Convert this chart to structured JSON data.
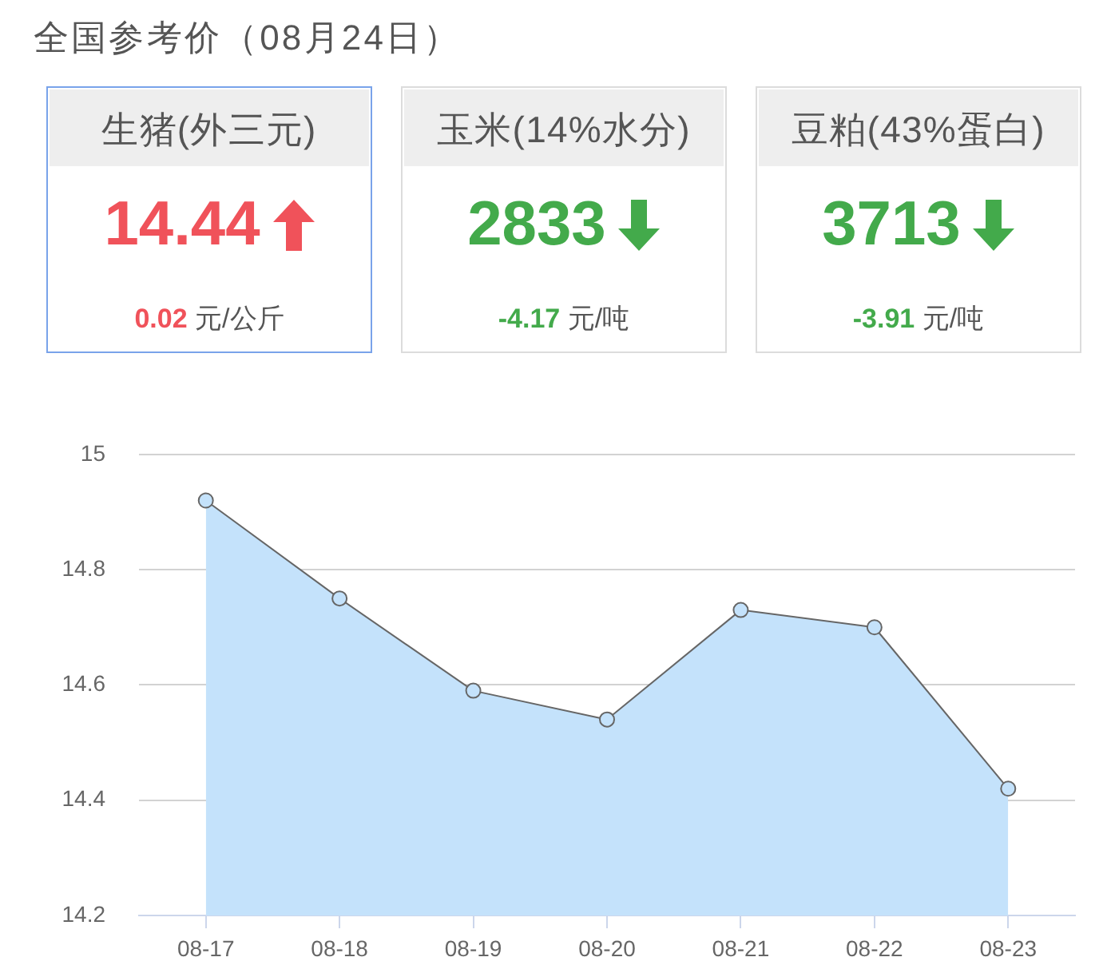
{
  "chart_data": [
    {
      "type": "other",
      "title": "全国参考价（08月24日）",
      "categories": [
        "生猪(外三元)",
        "玉米(14%水分)",
        "豆粕(43%蛋白)"
      ],
      "series": [
        {
          "values": [
            14.44,
            2833,
            3713
          ]
        },
        {
          "values": [
            0.02,
            -4.17,
            -3.91
          ]
        }
      ],
      "annotations": [
        "元/公斤",
        "元/吨",
        "元/吨"
      ],
      "data_labels": true
    },
    {
      "type": "area",
      "categories": [
        "08-17",
        "08-18",
        "08-19",
        "08-20",
        "08-21",
        "08-22",
        "08-23"
      ],
      "values": [
        14.92,
        14.75,
        14.59,
        14.54,
        14.73,
        14.7,
        14.42
      ],
      "color": "#c4e2fb",
      "ylim": [
        14.2,
        15
      ],
      "yticks": [
        14.2,
        14.4,
        14.6,
        14.8,
        15
      ],
      "grid": "y",
      "marker": "circle"
    }
  ]
}
